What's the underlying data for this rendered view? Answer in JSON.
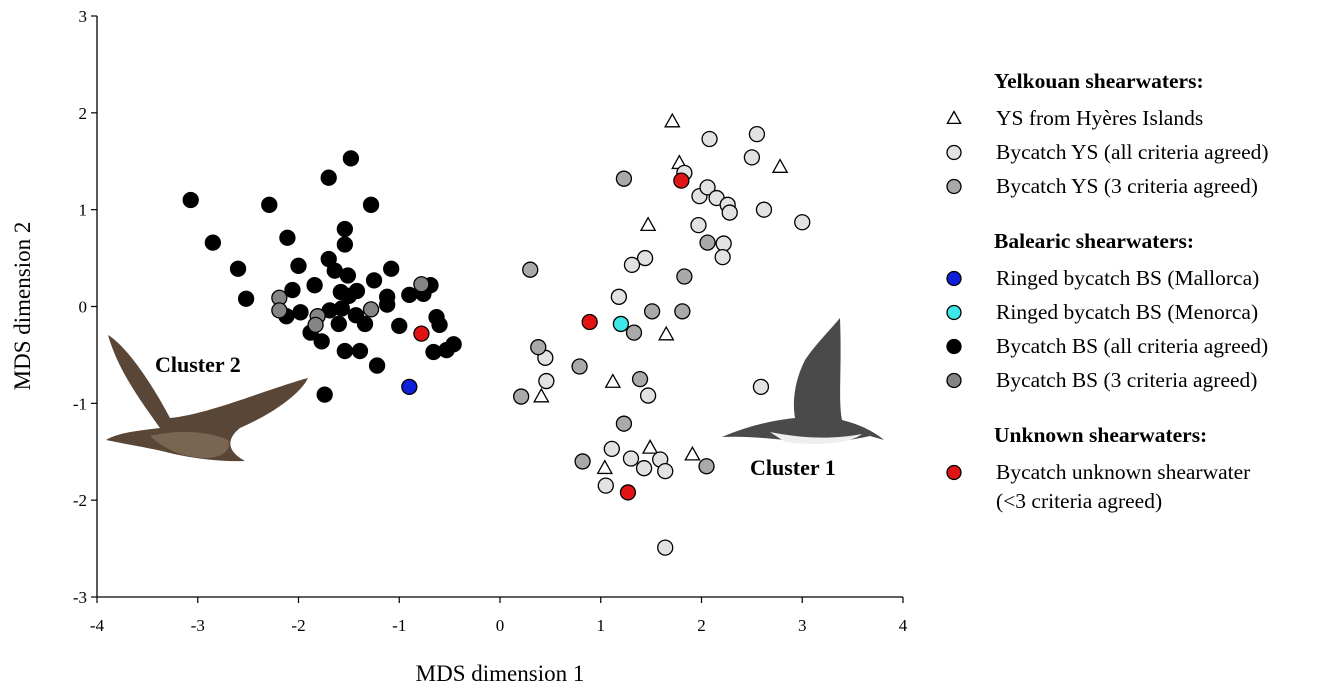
{
  "chart_data": {
    "type": "scatter",
    "xlabel": "MDS dimension 1",
    "ylabel": "MDS dimension 2",
    "xlim": [
      -4,
      4
    ],
    "xticks": [
      -4,
      -3,
      -2,
      -1,
      0,
      1,
      2,
      3,
      4
    ],
    "ylim": [
      -3,
      3
    ],
    "yticks": [
      -3,
      -2,
      -1,
      0,
      1,
      2,
      3
    ],
    "annotations": [
      "Cluster 2",
      "Cluster 1"
    ],
    "series": [
      {
        "group": "Yelkouan shearwaters:",
        "name": "YS from Hyères Islands",
        "marker": "triangle",
        "color": "#ffffff",
        "x": [
          1.71,
          1.78,
          2.78,
          1.47,
          1.65,
          1.12,
          0.41,
          1.49,
          1.91,
          1.04
        ],
        "values": [
          1.91,
          1.48,
          1.44,
          0.84,
          -0.29,
          -0.78,
          -0.93,
          -1.46,
          -1.53,
          -1.67
        ]
      },
      {
        "group": "Yelkouan shearwaters:",
        "name": "Bycatch YS (all criteria agreed)",
        "marker": "circle",
        "color": "#e2e2e2",
        "x": [
          2.08,
          2.55,
          2.5,
          1.83,
          1.98,
          2.06,
          2.15,
          2.26,
          2.28,
          2.62,
          3.0,
          1.97,
          2.22,
          2.21,
          1.44,
          1.31,
          1.18,
          0.45,
          0.46,
          1.47,
          2.59,
          1.11,
          1.59,
          1.43,
          1.3,
          1.64,
          1.05,
          1.64
        ],
        "values": [
          1.73,
          1.78,
          1.54,
          1.38,
          1.14,
          1.23,
          1.12,
          1.05,
          0.97,
          1.0,
          0.87,
          0.84,
          0.65,
          0.51,
          0.5,
          0.43,
          0.1,
          -0.53,
          -0.77,
          -0.92,
          -0.83,
          -1.47,
          -1.58,
          -1.67,
          -1.57,
          -1.7,
          -1.85,
          -2.49
        ]
      },
      {
        "group": "Yelkouan shearwaters:",
        "name": "Bycatch YS (3 criteria agreed)",
        "marker": "circle",
        "color": "#a9a9a9",
        "x": [
          1.23,
          2.06,
          1.83,
          0.3,
          1.51,
          1.81,
          1.33,
          1.39,
          0.79,
          0.38,
          0.21,
          1.23,
          0.82,
          2.05
        ],
        "values": [
          1.32,
          0.66,
          0.31,
          0.38,
          -0.05,
          -0.05,
          -0.27,
          -0.75,
          -0.62,
          -0.42,
          -0.93,
          -1.21,
          -1.6,
          -1.65
        ]
      },
      {
        "group": "Balearic shearwaters:",
        "name": "Ringed bycatch BS (Mallorca)",
        "marker": "circle",
        "color": "#1020d8",
        "x": [
          -0.9
        ],
        "values": [
          -0.83
        ]
      },
      {
        "group": "Balearic shearwaters:",
        "name": "Ringed bycatch BS (Menorca)",
        "marker": "circle",
        "color": "#3de8e8",
        "x": [
          1.2
        ],
        "values": [
          -0.18
        ]
      },
      {
        "group": "Balearic shearwaters:",
        "name": "Bycatch BS (all criteria agreed)",
        "marker": "circle",
        "color": "#000000",
        "x": [
          -3.07,
          -1.48,
          -1.7,
          -1.28,
          -2.29,
          -2.85,
          -2.11,
          -1.54,
          -1.54,
          -2.6,
          -2.0,
          -1.7,
          -1.64,
          -1.51,
          -1.08,
          -1.25,
          -1.84,
          -1.42,
          -2.52,
          -2.06,
          -1.98,
          -1.58,
          -1.5,
          -1.12,
          -0.9,
          -0.69,
          -1.12,
          -1.69,
          -1.43,
          -1.34,
          -1.6,
          -2.12,
          -1.88,
          -1.77,
          -1.54,
          -1.39,
          -1.22,
          -1.0,
          -0.63,
          -0.6,
          -0.66,
          -0.53,
          -0.46,
          -1.74,
          -0.76,
          -1.57
        ],
        "values": [
          1.1,
          1.53,
          1.33,
          1.05,
          1.05,
          0.66,
          0.71,
          0.8,
          0.64,
          0.39,
          0.42,
          0.49,
          0.37,
          0.32,
          0.39,
          0.27,
          0.22,
          0.16,
          0.08,
          0.17,
          -0.06,
          0.15,
          0.11,
          0.1,
          0.12,
          0.22,
          0.02,
          -0.04,
          -0.09,
          -0.18,
          -0.18,
          -0.1,
          -0.27,
          -0.36,
          -0.46,
          -0.46,
          -0.61,
          -0.2,
          -0.11,
          -0.19,
          -0.47,
          -0.45,
          -0.39,
          -0.91,
          0.13,
          -0.02
        ]
      },
      {
        "group": "Balearic shearwaters:",
        "name": "Bycatch BS (3 criteria agreed)",
        "marker": "circle",
        "color": "#858585",
        "x": [
          -2.19,
          -2.19,
          -1.81,
          -1.83,
          -1.28,
          -0.78
        ],
        "values": [
          0.09,
          -0.04,
          -0.1,
          -0.19,
          -0.03,
          0.23
        ]
      },
      {
        "group": "Unknown shearwaters:",
        "name": "Bycatch unknown shearwater (<3 criteria agreed)",
        "marker": "circle",
        "color": "#e01414",
        "x": [
          1.8,
          0.89,
          -0.78,
          1.27
        ],
        "values": [
          1.3,
          -0.16,
          -0.28,
          -1.92
        ]
      }
    ]
  }
}
